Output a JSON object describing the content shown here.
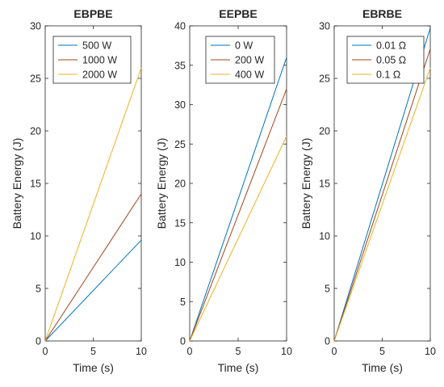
{
  "chart_data": [
    {
      "type": "line",
      "title": "EBPBE",
      "xlabel": "Time (s)",
      "ylabel": "Battery Energy (J)",
      "xlim": [
        0,
        10
      ],
      "ylim": [
        0,
        30
      ],
      "xticks": [
        "0",
        "5",
        "10"
      ],
      "yticks": [
        "0",
        "5",
        "10",
        "15",
        "20",
        "25",
        "30"
      ],
      "grid": false,
      "legend": "top-right",
      "x": [
        0,
        10
      ],
      "series": [
        {
          "name": "500 W",
          "color": "#0072BD",
          "values": [
            0,
            9.6
          ]
        },
        {
          "name": "1000 W",
          "color": "#A2441B",
          "values": [
            0,
            14
          ]
        },
        {
          "name": "2000 W",
          "color": "#EDB120",
          "values": [
            0,
            26
          ]
        }
      ]
    },
    {
      "type": "line",
      "title": "EEPBE",
      "xlabel": "Time (s)",
      "ylabel": "Battery Energy (J)",
      "xlim": [
        0,
        10
      ],
      "ylim": [
        0,
        40
      ],
      "xticks": [
        "0",
        "5",
        "10"
      ],
      "yticks": [
        "0",
        "5",
        "10",
        "15",
        "20",
        "25",
        "30",
        "35",
        "40"
      ],
      "grid": false,
      "legend": "top-right",
      "x": [
        0,
        10
      ],
      "series": [
        {
          "name": "0 W",
          "color": "#0072BD",
          "values": [
            0,
            36
          ]
        },
        {
          "name": "200 W",
          "color": "#A2441B",
          "values": [
            0,
            32
          ]
        },
        {
          "name": "400 W",
          "color": "#EDB120",
          "values": [
            0,
            26
          ]
        }
      ]
    },
    {
      "type": "line",
      "title": "EBRBE",
      "xlabel": "Time (s)",
      "ylabel": "Battery Energy (J)",
      "xlim": [
        0,
        10
      ],
      "ylim": [
        0,
        30
      ],
      "xticks": [
        "0",
        "5",
        "10"
      ],
      "yticks": [
        "0",
        "5",
        "10",
        "15",
        "20",
        "25",
        "30"
      ],
      "grid": false,
      "legend": "top-right",
      "x": [
        0,
        10
      ],
      "series": [
        {
          "name": "0.01 Ω",
          "color": "#0072BD",
          "values": [
            0,
            29.8
          ]
        },
        {
          "name": "0.05 Ω",
          "color": "#A2441B",
          "values": [
            0,
            27.8
          ]
        },
        {
          "name": "0.1 Ω",
          "color": "#EDB120",
          "values": [
            0,
            26
          ]
        }
      ]
    }
  ]
}
